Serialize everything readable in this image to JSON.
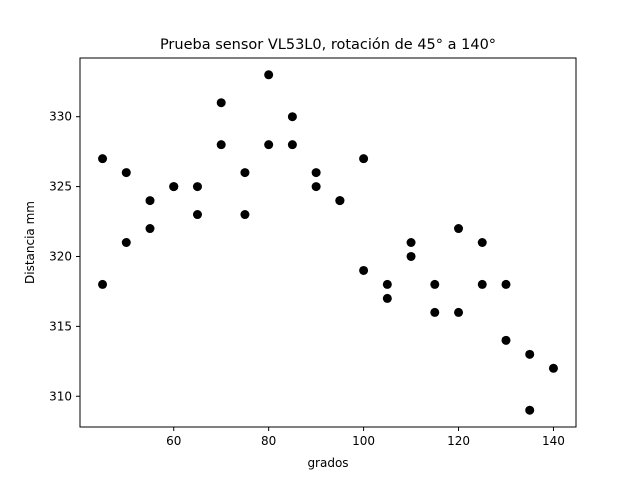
{
  "chart_data": {
    "type": "scatter",
    "title": "Prueba sensor VL53L0, rotación de 45° a 140°",
    "xlabel": "grados",
    "ylabel": "Distancia mm",
    "xlim": [
      40.25,
      144.75
    ],
    "ylim": [
      307.8,
      334.2
    ],
    "xticks": [
      60,
      80,
      100,
      120,
      140
    ],
    "yticks": [
      310,
      315,
      320,
      325,
      330
    ],
    "grid": false,
    "marker_color": "#000000",
    "points": [
      {
        "x": 45,
        "y": 327
      },
      {
        "x": 45,
        "y": 318
      },
      {
        "x": 50,
        "y": 326
      },
      {
        "x": 50,
        "y": 321
      },
      {
        "x": 55,
        "y": 324
      },
      {
        "x": 55,
        "y": 322
      },
      {
        "x": 60,
        "y": 325
      },
      {
        "x": 60,
        "y": 325
      },
      {
        "x": 65,
        "y": 325
      },
      {
        "x": 65,
        "y": 323
      },
      {
        "x": 70,
        "y": 331
      },
      {
        "x": 70,
        "y": 328
      },
      {
        "x": 75,
        "y": 326
      },
      {
        "x": 75,
        "y": 323
      },
      {
        "x": 80,
        "y": 333
      },
      {
        "x": 80,
        "y": 328
      },
      {
        "x": 85,
        "y": 330
      },
      {
        "x": 85,
        "y": 328
      },
      {
        "x": 90,
        "y": 326
      },
      {
        "x": 90,
        "y": 325
      },
      {
        "x": 95,
        "y": 324
      },
      {
        "x": 95,
        "y": 324
      },
      {
        "x": 100,
        "y": 327
      },
      {
        "x": 100,
        "y": 319
      },
      {
        "x": 105,
        "y": 318
      },
      {
        "x": 105,
        "y": 317
      },
      {
        "x": 110,
        "y": 321
      },
      {
        "x": 110,
        "y": 320
      },
      {
        "x": 115,
        "y": 318
      },
      {
        "x": 115,
        "y": 316
      },
      {
        "x": 120,
        "y": 322
      },
      {
        "x": 120,
        "y": 316
      },
      {
        "x": 125,
        "y": 321
      },
      {
        "x": 125,
        "y": 318
      },
      {
        "x": 130,
        "y": 318
      },
      {
        "x": 130,
        "y": 314
      },
      {
        "x": 135,
        "y": 313
      },
      {
        "x": 135,
        "y": 309
      },
      {
        "x": 140,
        "y": 312
      }
    ]
  }
}
